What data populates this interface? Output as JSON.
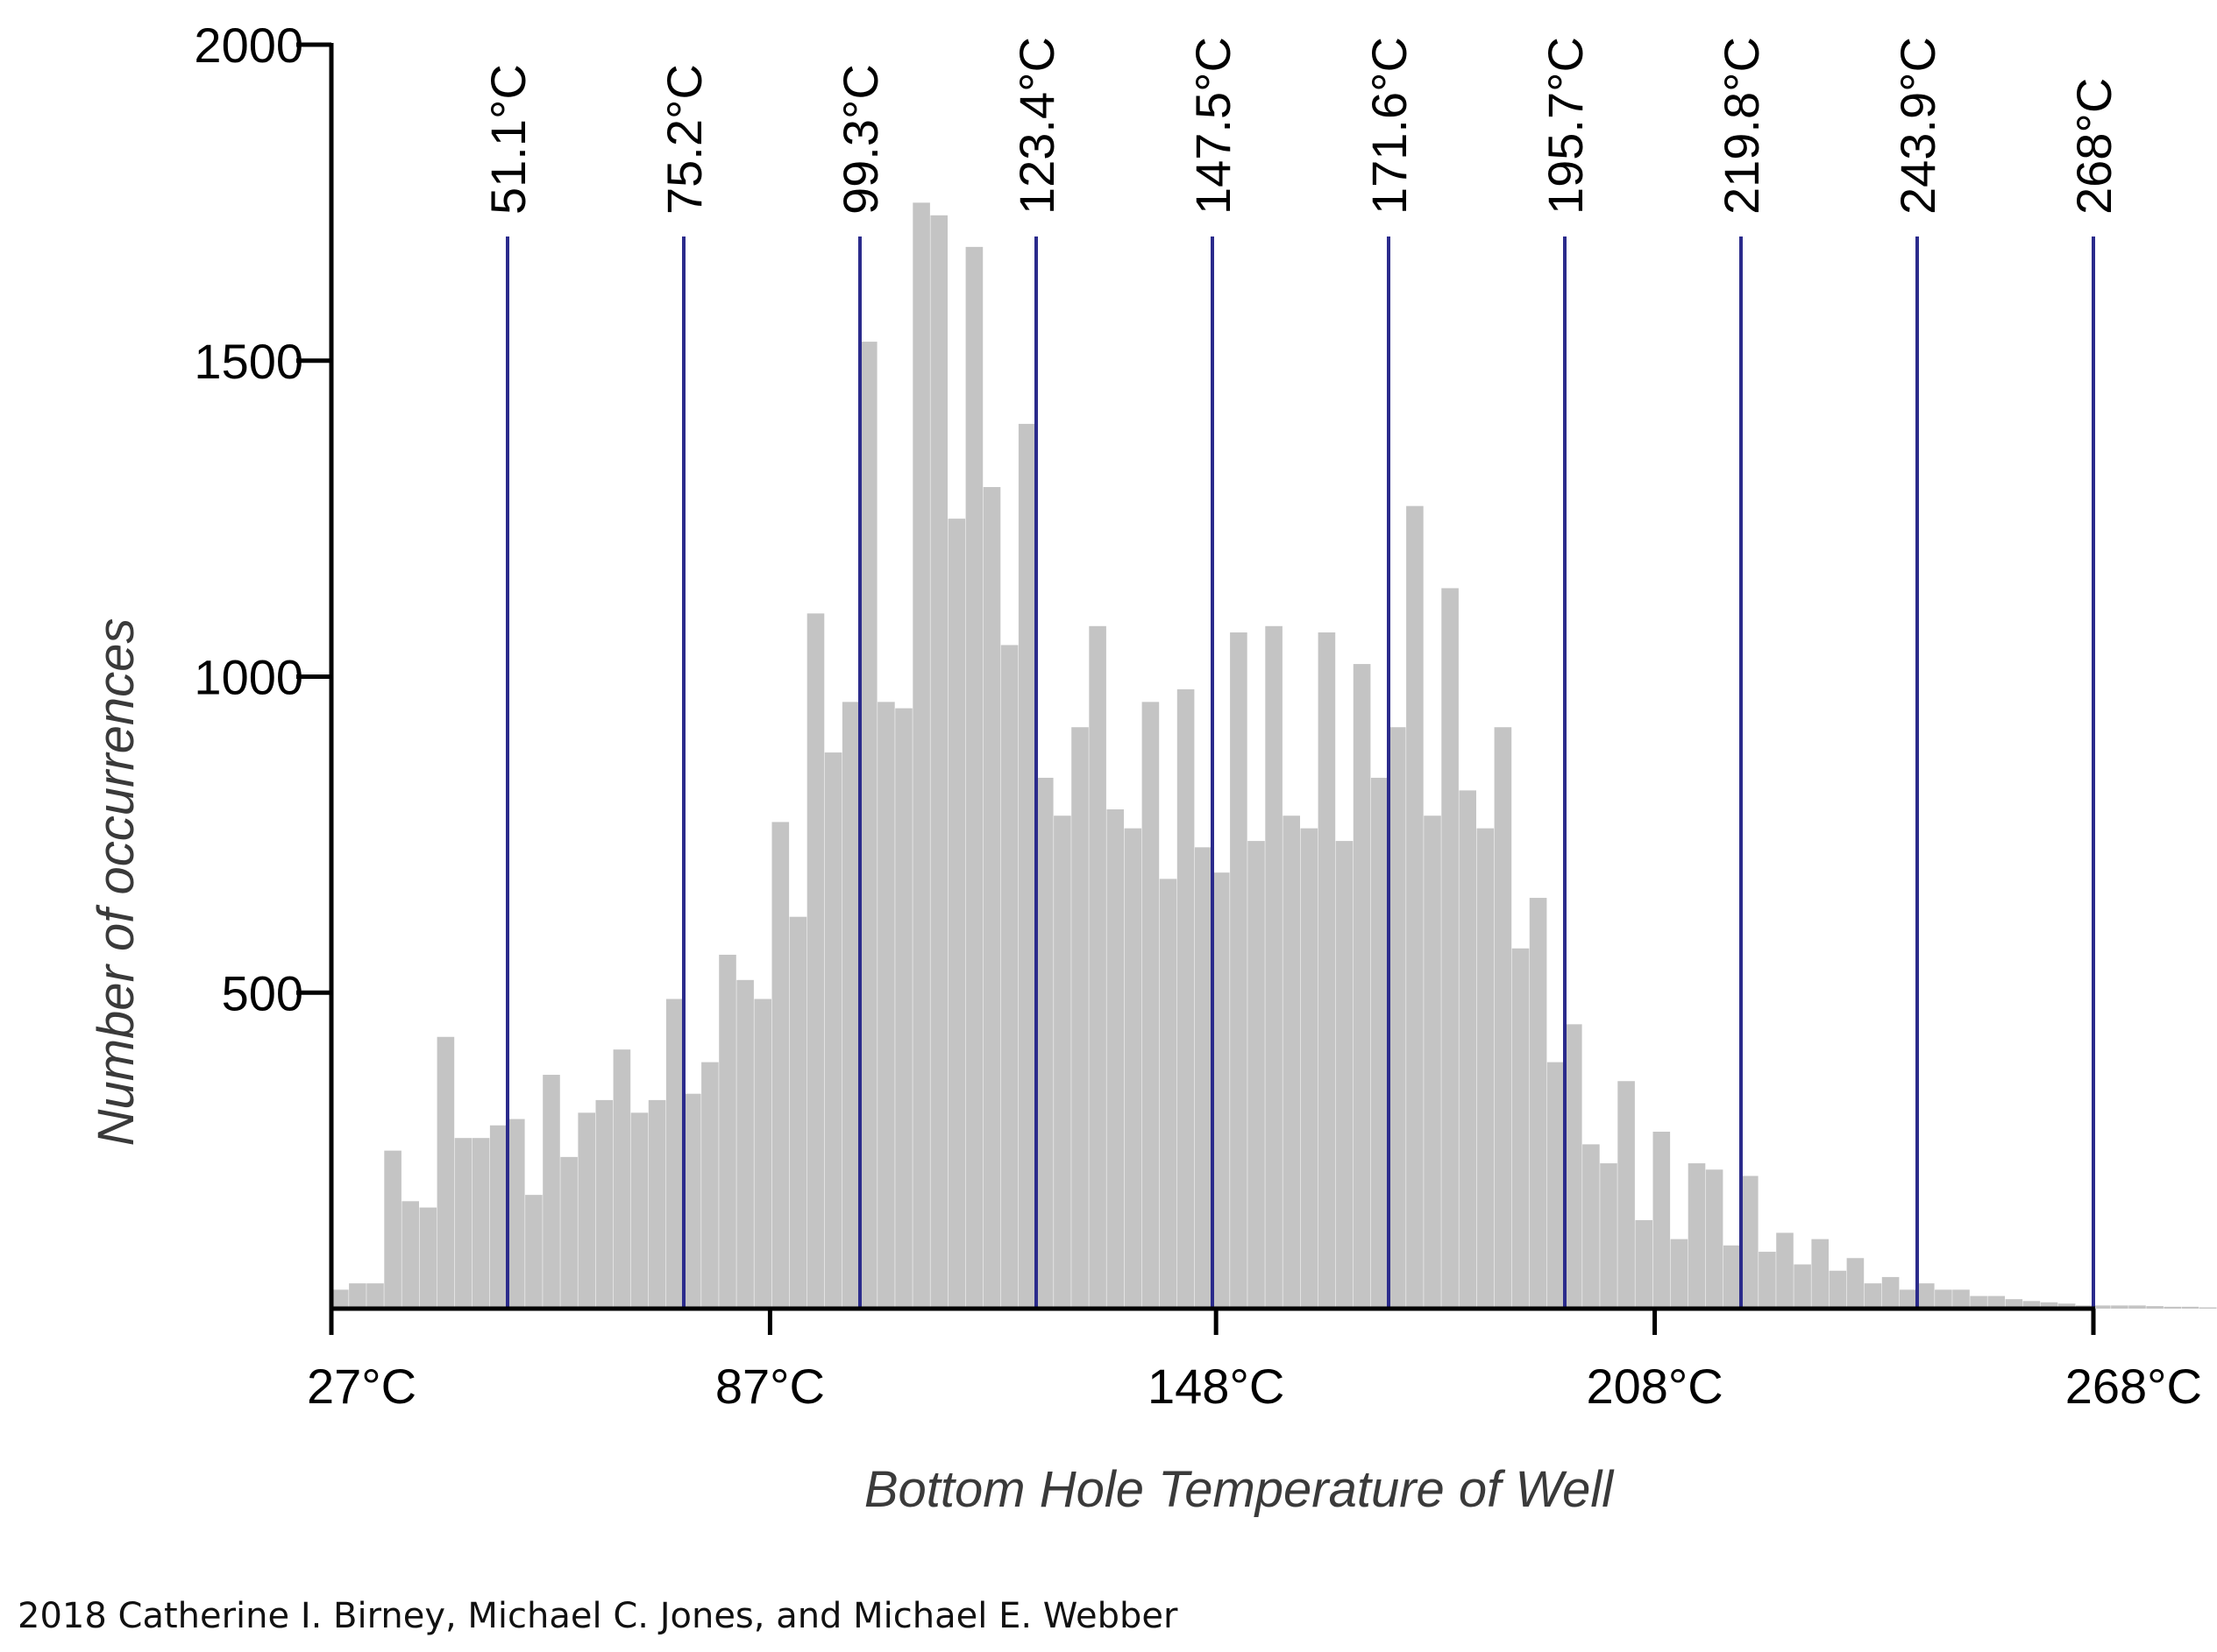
{
  "chart_data": {
    "type": "bar",
    "title": "",
    "xlabel": "Bottom Hole Temperature of Well",
    "ylabel": "Number of occurrences",
    "xlim": [
      27,
      268
    ],
    "ylim": [
      0,
      2000
    ],
    "x_ticks": [
      {
        "value": 27,
        "label": "27°C"
      },
      {
        "value": 87,
        "label": "87°C"
      },
      {
        "value": 148,
        "label": "148°C"
      },
      {
        "value": 208,
        "label": "208°C"
      },
      {
        "value": 268,
        "label": "268°C"
      }
    ],
    "y_ticks": [
      {
        "value": 500,
        "label": "500"
      },
      {
        "value": 1000,
        "label": "1000"
      },
      {
        "value": 1500,
        "label": "1500"
      },
      {
        "value": 2000,
        "label": "2000"
      }
    ],
    "bin_start": 27,
    "bin_width": 2.41,
    "values": [
      30,
      40,
      40,
      250,
      170,
      160,
      430,
      270,
      270,
      290,
      300,
      180,
      370,
      240,
      310,
      330,
      410,
      310,
      330,
      490,
      340,
      390,
      560,
      520,
      490,
      770,
      620,
      1100,
      880,
      960,
      1530,
      960,
      950,
      1750,
      1730,
      1250,
      1680,
      1300,
      1050,
      1400,
      840,
      780,
      920,
      1080,
      790,
      760,
      960,
      680,
      980,
      730,
      690,
      1070,
      740,
      1080,
      780,
      760,
      1070,
      740,
      1020,
      840,
      920,
      1270,
      780,
      1140,
      820,
      760,
      920,
      570,
      650,
      390,
      450,
      260,
      230,
      360,
      140,
      280,
      110,
      230,
      220,
      100,
      210,
      90,
      120,
      70,
      110,
      60,
      80,
      40,
      50,
      30,
      40,
      30,
      30,
      20,
      20,
      15,
      12,
      10,
      8,
      5,
      5,
      5,
      5,
      4,
      3,
      3,
      2,
      2
    ],
    "bar_color": "#c4c4c4",
    "reference_lines": [
      {
        "value": 51.1,
        "label": "51.1°C"
      },
      {
        "value": 75.2,
        "label": "75.2°C"
      },
      {
        "value": 99.3,
        "label": "99.3°C"
      },
      {
        "value": 123.4,
        "label": "123.4°C"
      },
      {
        "value": 147.5,
        "label": "147.5°C"
      },
      {
        "value": 171.6,
        "label": "171.6°C"
      },
      {
        "value": 195.7,
        "label": "195.7°C"
      },
      {
        "value": 219.8,
        "label": "219.8°C"
      },
      {
        "value": 243.9,
        "label": "243.9°C"
      },
      {
        "value": 268,
        "label": "268°C"
      }
    ],
    "reference_line_color": "#2b2b8c",
    "grid": false,
    "legend": "none"
  },
  "footer": {
    "credit": "2018 Catherine I. Birney, Michael C. Jones, and Michael E. Webber"
  }
}
